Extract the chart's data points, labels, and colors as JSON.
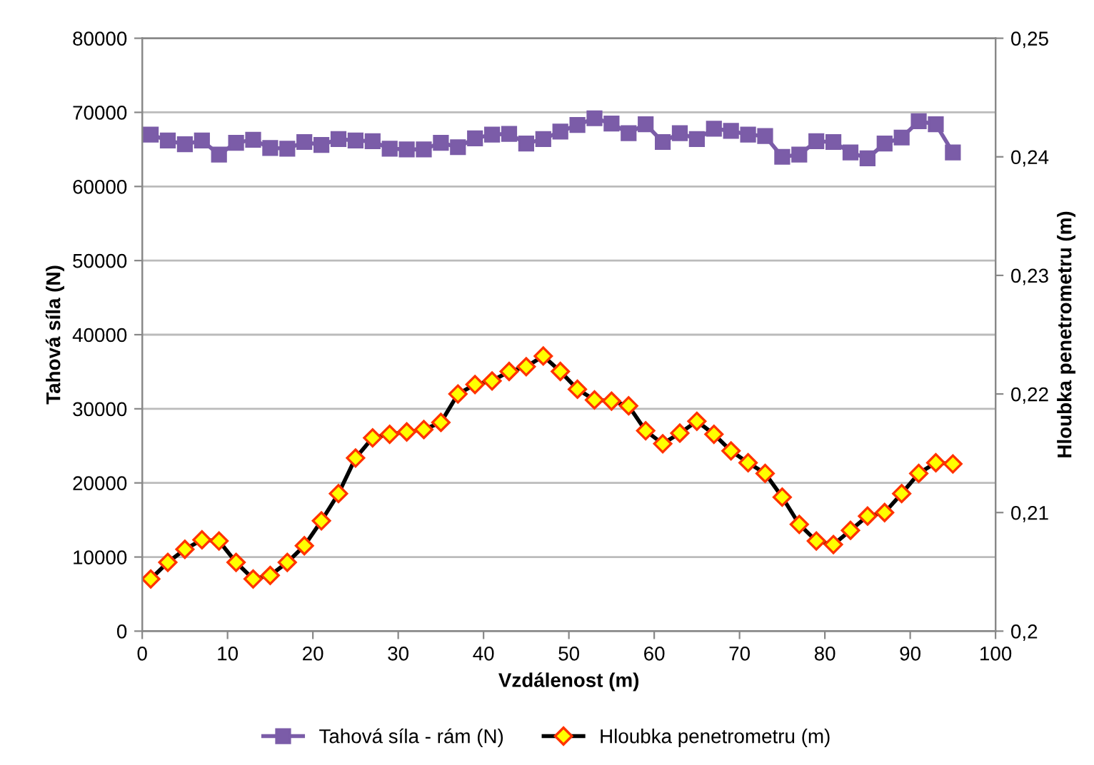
{
  "chart_data": {
    "type": "line",
    "xlabel": "Vzdálenost (m)",
    "ylabel": "Tahová síla (N)",
    "y2label": "Hloubka penetrometru (m)",
    "x": [
      1,
      3,
      5,
      7,
      9,
      11,
      13,
      15,
      17,
      19,
      21,
      23,
      25,
      27,
      29,
      31,
      33,
      35,
      37,
      39,
      41,
      43,
      45,
      47,
      49,
      51,
      53,
      55,
      57,
      59,
      61,
      63,
      65,
      67,
      69,
      71,
      73,
      75,
      77,
      79,
      81,
      83,
      85,
      87,
      89,
      91,
      93,
      95
    ],
    "series": [
      {
        "name": "Tahová síla - rám (N)",
        "color": "#7b5ca8",
        "marker": "square",
        "values": [
          67000,
          66200,
          65700,
          66200,
          64300,
          65900,
          66300,
          65200,
          65100,
          66000,
          65600,
          66400,
          66200,
          66100,
          65100,
          65000,
          65000,
          65900,
          65300,
          66500,
          67000,
          67100,
          65800,
          66400,
          67400,
          68300,
          69200,
          68500,
          67200,
          68400,
          66000,
          67200,
          66400,
          67800,
          67500,
          67000,
          66800,
          64000,
          64300,
          66100,
          66000,
          64600,
          63800,
          65800,
          66600,
          68800,
          68400,
          64600
        ]
      },
      {
        "name": "Hloubka penetrometru (m)",
        "color": "#000000",
        "marker": "diamond",
        "axis": "y2",
        "values": [
          0.2044,
          0.2058,
          0.2069,
          0.2077,
          0.2076,
          0.2058,
          0.2044,
          0.2047,
          0.2058,
          0.2072,
          0.2093,
          0.2116,
          0.2146,
          0.2163,
          0.2166,
          0.2168,
          0.217,
          0.2176,
          0.22,
          0.2208,
          0.2211,
          0.2219,
          0.2223,
          0.2232,
          0.2219,
          0.2204,
          0.2195,
          0.2194,
          0.219,
          0.2169,
          0.2158,
          0.2167,
          0.2177,
          0.2166,
          0.2152,
          0.2142,
          0.2133,
          0.2113,
          0.209,
          0.2076,
          0.2073,
          0.2085,
          0.2097,
          0.21,
          0.2116,
          0.2133,
          0.2142,
          0.2141
        ]
      }
    ],
    "xlim": [
      0,
      100
    ],
    "xticks": [
      0,
      10,
      20,
      30,
      40,
      50,
      60,
      70,
      80,
      90,
      100
    ],
    "ylim": [
      0,
      80000
    ],
    "yticks": [
      0,
      10000,
      20000,
      30000,
      40000,
      50000,
      60000,
      70000,
      80000
    ],
    "y2lim": [
      0.2,
      0.25
    ],
    "y2ticks": [
      {
        "value": 0.2,
        "label": "0,2"
      },
      {
        "value": 0.21,
        "label": "0,21"
      },
      {
        "value": 0.22,
        "label": "0,22"
      },
      {
        "value": 0.23,
        "label": "0,23"
      },
      {
        "value": 0.24,
        "label": "0,24"
      },
      {
        "value": 0.25,
        "label": "0,25"
      }
    ],
    "grid": "y",
    "legend": "bottom",
    "line_style": "solid"
  }
}
